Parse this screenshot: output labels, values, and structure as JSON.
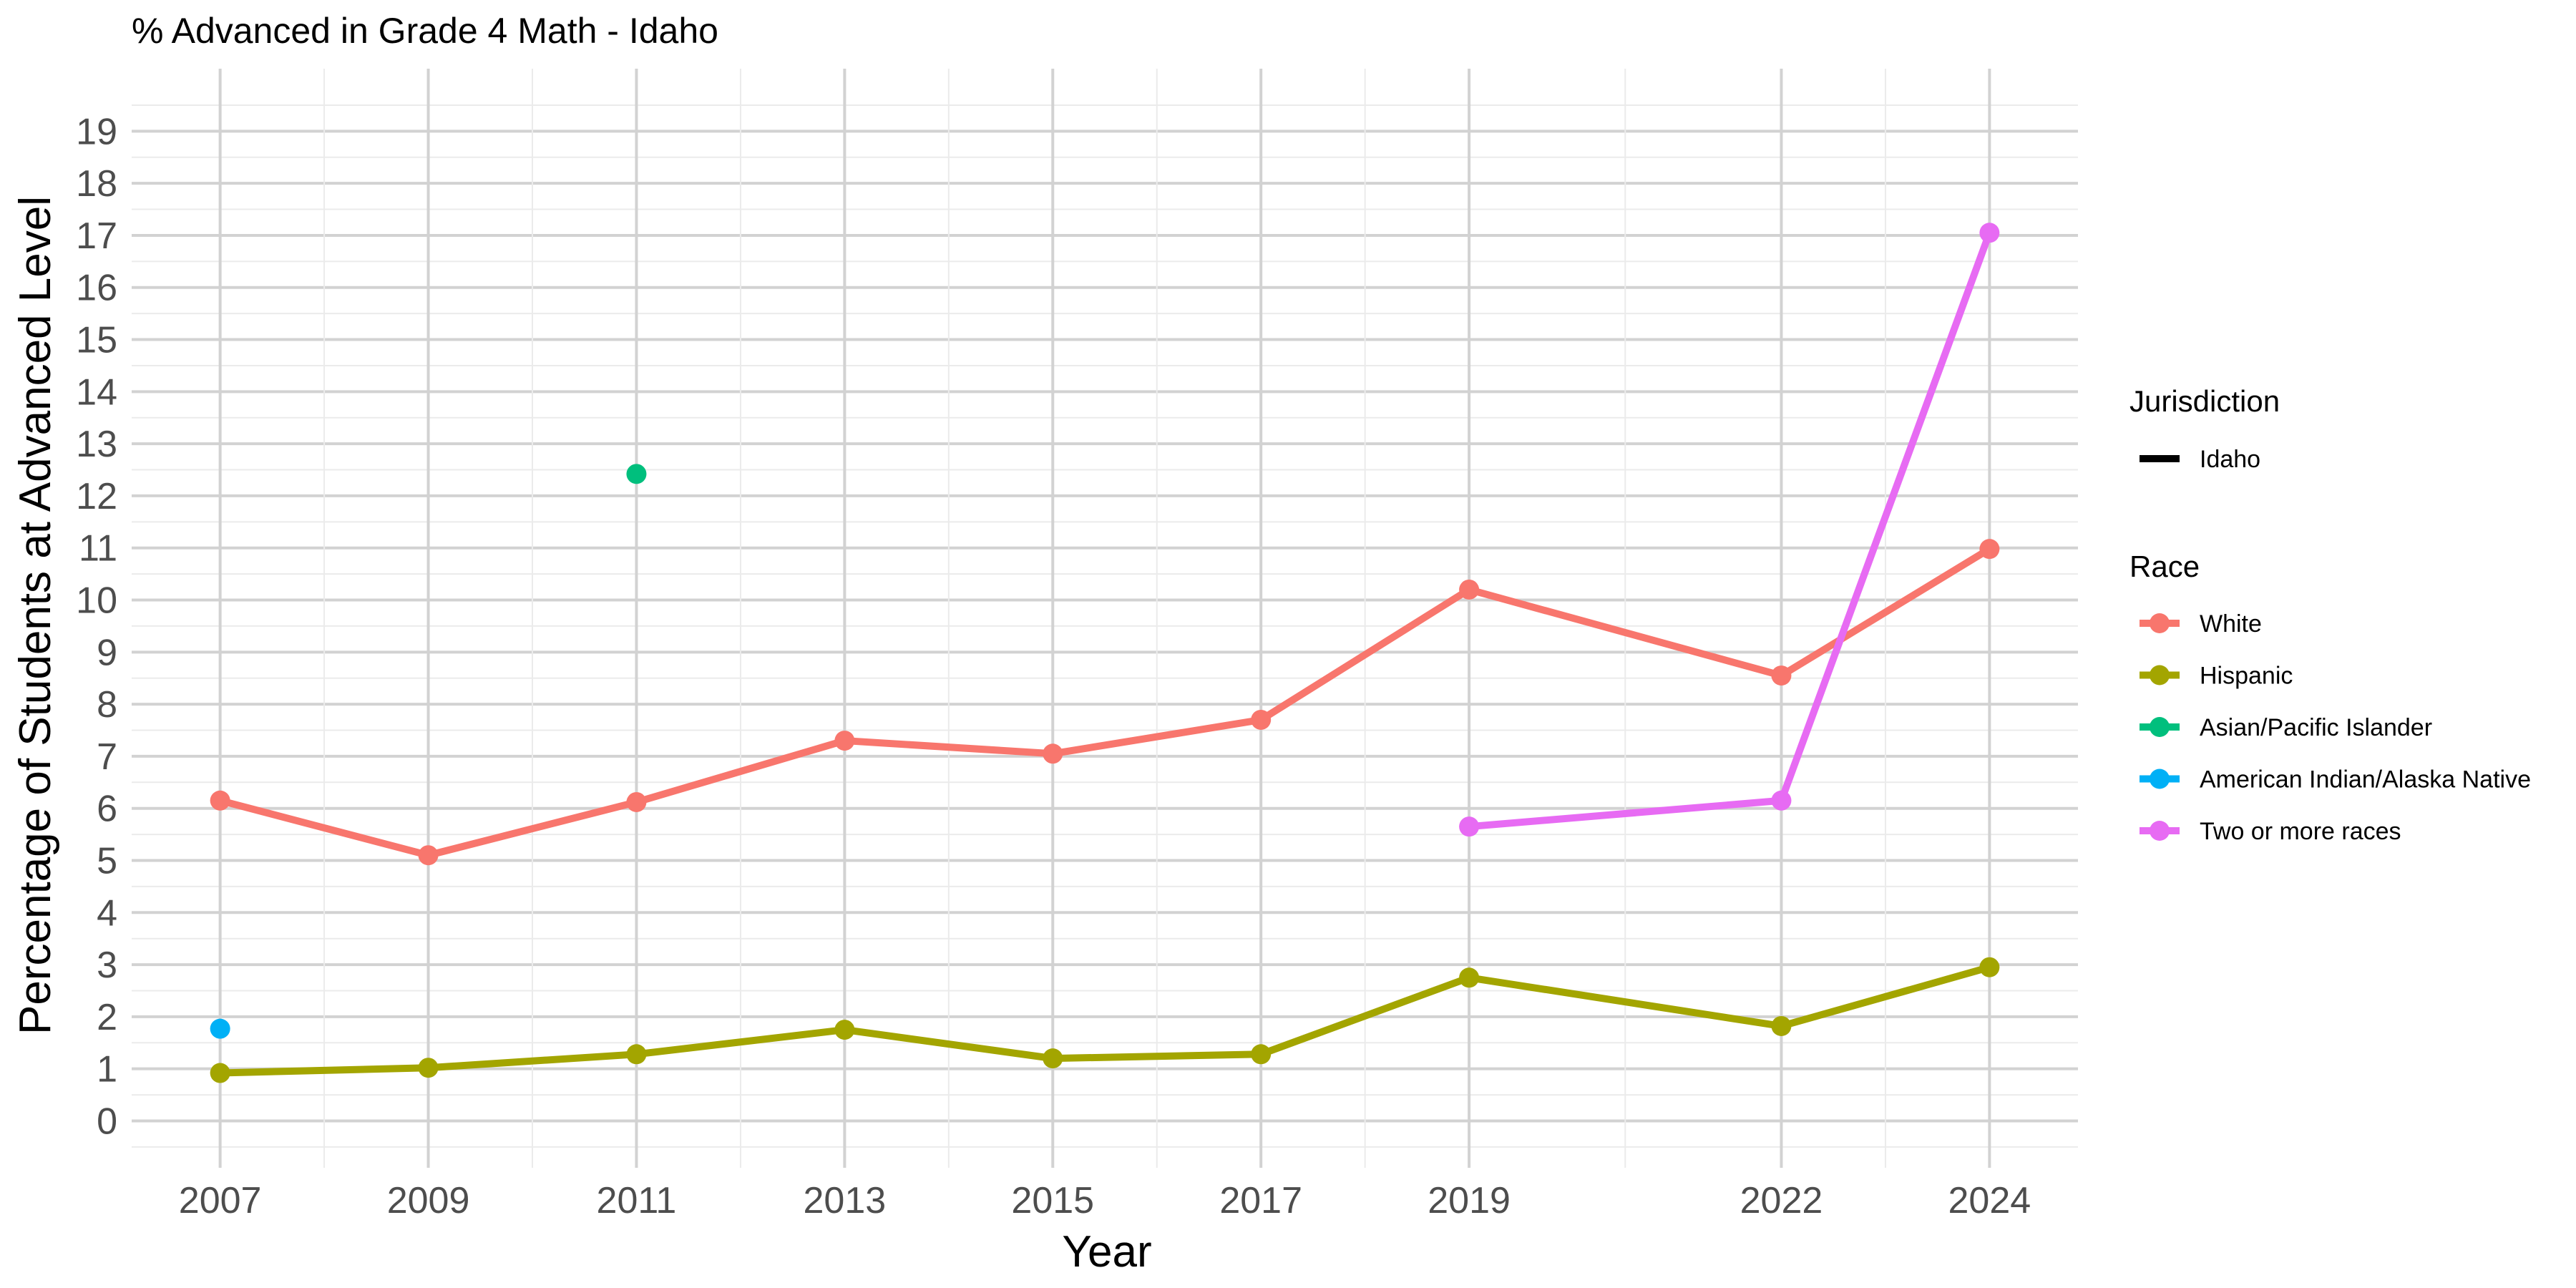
{
  "chart_data": {
    "type": "line",
    "title": "% Advanced in Grade 4 Math - Idaho",
    "xlabel": "Year",
    "ylabel": "Percentage of Students at Advanced Level",
    "x_ticks": [
      "2007",
      "2009",
      "2011",
      "2013",
      "2015",
      "2017",
      "2019",
      "2022",
      "2024"
    ],
    "y_ticks": [
      "0",
      "1",
      "2",
      "3",
      "4",
      "5",
      "6",
      "7",
      "8",
      "9",
      "10",
      "11",
      "12",
      "13",
      "14",
      "15",
      "16",
      "17",
      "18",
      "19"
    ],
    "xlim": [
      2006.15,
      2024.85
    ],
    "ylim": [
      -0.9,
      20.2
    ],
    "grid": true,
    "legend_position": "right",
    "legend": {
      "jurisdiction_title": "Jurisdiction",
      "jurisdiction_items": [
        {
          "label": "Idaho",
          "color": "#000000"
        }
      ],
      "race_title": "Race"
    },
    "series": [
      {
        "name": "White",
        "color": "#F8766D",
        "x": [
          2007,
          2009,
          2011,
          2013,
          2015,
          2017,
          2019,
          2022,
          2024
        ],
        "y": [
          6.15,
          5.1,
          6.12,
          7.3,
          7.05,
          7.7,
          10.2,
          8.55,
          10.98
        ]
      },
      {
        "name": "Hispanic",
        "color": "#A3A500",
        "x": [
          2007,
          2009,
          2011,
          2013,
          2015,
          2017,
          2019,
          2022,
          2024
        ],
        "y": [
          0.92,
          1.02,
          1.28,
          1.75,
          1.2,
          1.28,
          2.75,
          1.82,
          2.95
        ]
      },
      {
        "name": "Asian/Pacific Islander",
        "color": "#00BF7D",
        "x": [
          2011
        ],
        "y": [
          12.42
        ]
      },
      {
        "name": "American Indian/Alaska Native",
        "color": "#00B0F6",
        "x": [
          2007
        ],
        "y": [
          1.77
        ]
      },
      {
        "name": "Two or more races",
        "color": "#E76BF3",
        "x": [
          2019,
          2022,
          2024
        ],
        "y": [
          5.65,
          6.15,
          17.05
        ]
      }
    ]
  }
}
